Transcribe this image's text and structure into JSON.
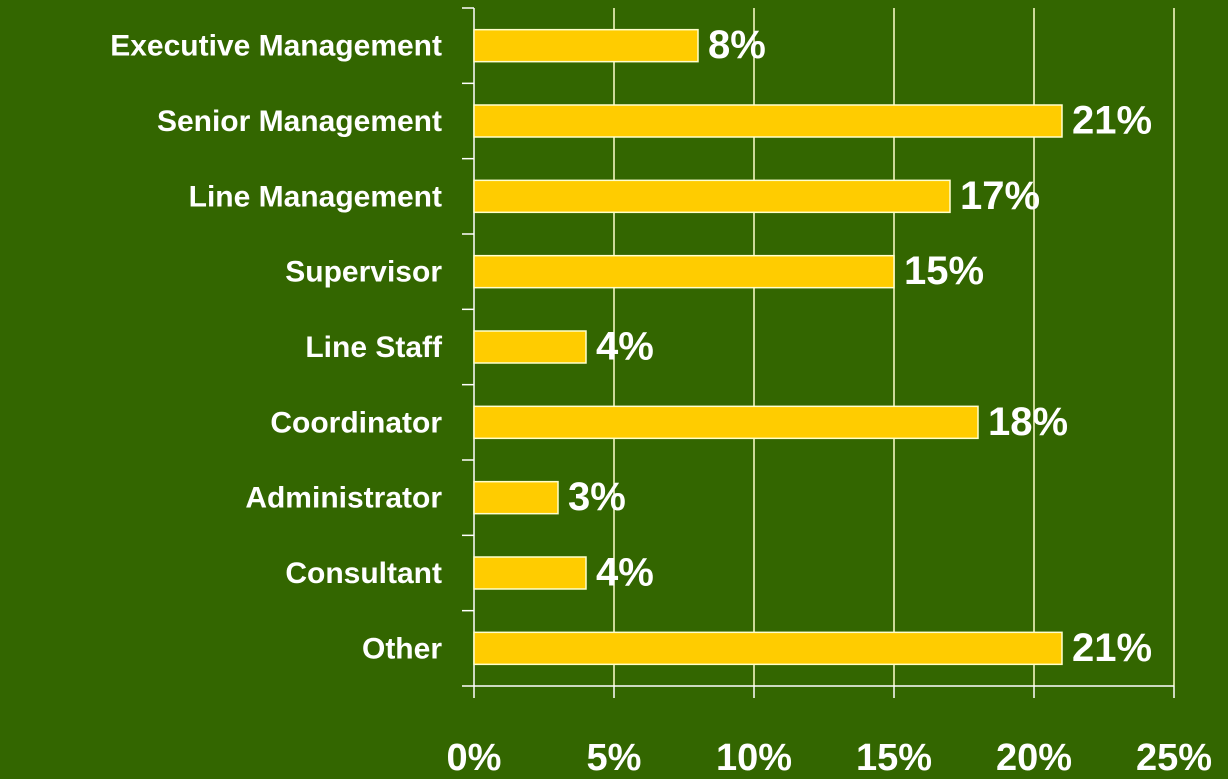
{
  "chart_data": {
    "type": "bar",
    "orientation": "horizontal",
    "categories": [
      "Executive Management",
      "Senior Management",
      "Line Management",
      "Supervisor",
      "Line Staff",
      "Coordinator",
      "Administrator",
      "Consultant",
      "Other"
    ],
    "values": [
      8,
      21,
      17,
      15,
      4,
      18,
      3,
      4,
      21
    ],
    "value_labels": [
      "8%",
      "21%",
      "17%",
      "15%",
      "4%",
      "18%",
      "3%",
      "4%",
      "21%"
    ],
    "color": "#ffcc00",
    "xlim": [
      0,
      25
    ],
    "xticks": [
      {
        "value": 0,
        "label": "0%"
      },
      {
        "value": 5,
        "label": "5%"
      },
      {
        "value": 10,
        "label": "10%"
      },
      {
        "value": 15,
        "label": "15%"
      },
      {
        "value": 20,
        "label": "20%"
      },
      {
        "value": 25,
        "label": "25%"
      }
    ],
    "grid": true
  }
}
